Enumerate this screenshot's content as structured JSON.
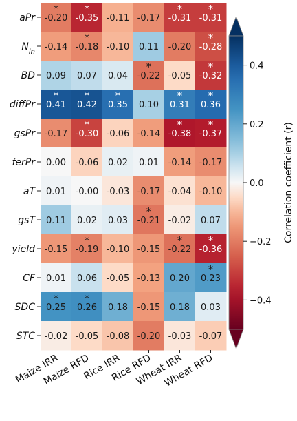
{
  "chart_data": {
    "type": "heatmap",
    "columns": [
      "Maize IRR",
      "Maize RFD",
      "Rice IRR",
      "Rice RFD",
      "Wheat IRR",
      "Wheat RFD"
    ],
    "rows": [
      {
        "label": "aPr",
        "sub": "",
        "values": [
          -0.2,
          -0.35,
          -0.11,
          -0.17,
          -0.31,
          -0.31
        ],
        "display": [
          "-0.20",
          "-0.35",
          "-0.11",
          "-0.17",
          "-0.31",
          "-0.31"
        ],
        "significant": [
          true,
          true,
          false,
          false,
          true,
          true
        ]
      },
      {
        "label": "N",
        "sub": "in",
        "values": [
          -0.14,
          -0.18,
          -0.1,
          0.11,
          -0.2,
          -0.28
        ],
        "display": [
          "-0.14",
          "-0.18",
          "-0.10",
          "0.11",
          "-0.20",
          "-0.28"
        ],
        "significant": [
          false,
          true,
          false,
          false,
          false,
          true
        ]
      },
      {
        "label": "BD",
        "sub": "",
        "values": [
          0.09,
          0.07,
          0.04,
          -0.22,
          -0.05,
          -0.32
        ],
        "display": [
          "0.09",
          "0.07",
          "0.04",
          "-0.22",
          "-0.05",
          "-0.32"
        ],
        "significant": [
          false,
          false,
          false,
          true,
          false,
          true
        ]
      },
      {
        "label": "diffPr",
        "sub": "",
        "values": [
          0.41,
          0.42,
          0.35,
          0.1,
          0.31,
          0.36
        ],
        "display": [
          "0.41",
          "0.42",
          "0.35",
          "0.10",
          "0.31",
          "0.36"
        ],
        "significant": [
          true,
          true,
          true,
          false,
          true,
          true
        ]
      },
      {
        "label": "gsPr",
        "sub": "",
        "values": [
          -0.17,
          -0.3,
          -0.06,
          -0.14,
          -0.38,
          -0.37
        ],
        "display": [
          "-0.17",
          "-0.30",
          "-0.06",
          "-0.14",
          "-0.38",
          "-0.37"
        ],
        "significant": [
          false,
          true,
          false,
          false,
          true,
          true
        ]
      },
      {
        "label": "ferPr",
        "sub": "",
        "values": [
          0.0,
          -0.06,
          0.02,
          0.01,
          -0.14,
          -0.17
        ],
        "display": [
          "0.00",
          "-0.06",
          "0.02",
          "0.01",
          "-0.14",
          "-0.17"
        ],
        "significant": [
          false,
          false,
          false,
          false,
          false,
          false
        ]
      },
      {
        "label": "aT",
        "sub": "",
        "values": [
          0.01,
          -0.0,
          -0.03,
          -0.17,
          -0.04,
          -0.1
        ],
        "display": [
          "0.01",
          "-0.00",
          "-0.03",
          "-0.17",
          "-0.04",
          "-0.10"
        ],
        "significant": [
          false,
          false,
          false,
          false,
          false,
          false
        ]
      },
      {
        "label": "gsT",
        "sub": "",
        "values": [
          0.11,
          0.02,
          0.03,
          -0.21,
          -0.02,
          0.07
        ],
        "display": [
          "0.11",
          "0.02",
          "0.03",
          "-0.21",
          "-0.02",
          "0.07"
        ],
        "significant": [
          false,
          false,
          false,
          true,
          false,
          false
        ]
      },
      {
        "label": "yield",
        "sub": "",
        "values": [
          -0.15,
          -0.19,
          -0.1,
          -0.15,
          -0.22,
          -0.36
        ],
        "display": [
          "-0.15",
          "-0.19",
          "-0.10",
          "-0.15",
          "-0.22",
          "-0.36"
        ],
        "significant": [
          false,
          true,
          false,
          false,
          true,
          true
        ]
      },
      {
        "label": "CF",
        "sub": "",
        "values": [
          0.01,
          0.06,
          -0.05,
          -0.13,
          0.2,
          0.23
        ],
        "display": [
          "0.01",
          "0.06",
          "-0.05",
          "-0.13",
          "0.20",
          "0.23"
        ],
        "significant": [
          false,
          false,
          false,
          false,
          false,
          true
        ]
      },
      {
        "label": "SDC",
        "sub": "",
        "values": [
          0.25,
          0.26,
          0.18,
          -0.15,
          0.18,
          0.03
        ],
        "display": [
          "0.25",
          "0.26",
          "0.18",
          "-0.15",
          "0.18",
          "0.03"
        ],
        "significant": [
          true,
          true,
          false,
          false,
          false,
          false
        ]
      },
      {
        "label": "STC",
        "sub": "",
        "values": [
          -0.02,
          -0.05,
          -0.08,
          -0.2,
          -0.03,
          -0.07
        ],
        "display": [
          "-0.02",
          "-0.05",
          "-0.08",
          "-0.20",
          "-0.03",
          "-0.07"
        ],
        "significant": [
          false,
          false,
          false,
          false,
          false,
          false
        ]
      }
    ],
    "significance_marker": "*",
    "colormap": "RdBu",
    "vmin": -0.5,
    "vmax": 0.5,
    "colorbar": {
      "label": "Correlation coefficient (r)",
      "ticks": [
        0.4,
        0.2,
        0.0,
        -0.2,
        -0.4
      ],
      "tick_labels": [
        "0.4",
        "0.2",
        "0.0",
        "−0.2",
        "−0.4"
      ],
      "extend": "both"
    }
  }
}
